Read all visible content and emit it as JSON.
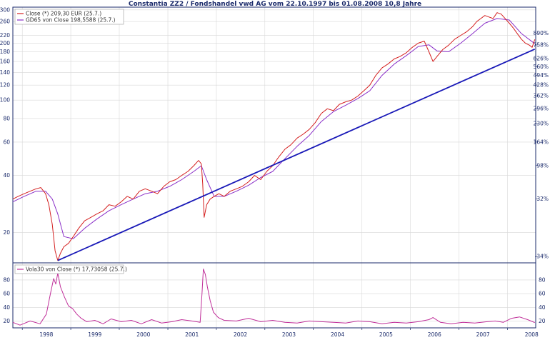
{
  "title": "Constantia ZZ2 / Fondshandel vwd AG vom 22.10.1997 bis 01.08.2008 10,8 Jahre",
  "colors": {
    "close": "#d42020",
    "gd65": "#8a30c8",
    "trend": "#1a1ab8",
    "vola": "#c0309a",
    "axis_text": "#1b2b6b",
    "grid": "#d8d8d8"
  },
  "chart_data": [
    {
      "type": "line",
      "panel": "price",
      "y_scale": "log",
      "ylim": [
        13.8,
        310
      ],
      "x_range": [
        "1997-10-22",
        "2008-08-01"
      ],
      "left_ticks": [
        20,
        40,
        60,
        80,
        100,
        120,
        140,
        160,
        180,
        200,
        220,
        260,
        300
      ],
      "right_ticks": [
        {
          "value": 14.9,
          "label": "-34%"
        },
        {
          "value": 30.0,
          "label": "32%"
        },
        {
          "value": 45.1,
          "label": "98%"
        },
        {
          "value": 60.0,
          "label": "164%"
        },
        {
          "value": 75.2,
          "label": "230%"
        },
        {
          "value": 90.1,
          "label": "296%"
        },
        {
          "value": 105.3,
          "label": "362%"
        },
        {
          "value": 120.2,
          "label": "428%"
        },
        {
          "value": 135.4,
          "label": "494%"
        },
        {
          "value": 150.3,
          "label": "560%"
        },
        {
          "value": 165.5,
          "label": "626%"
        },
        {
          "value": 195.7,
          "label": "758%"
        },
        {
          "value": 225.8,
          "label": "890%"
        }
      ],
      "legend": [
        {
          "label": "Close (*) 209,30 EUR (25.7.)",
          "color": "#d42020"
        },
        {
          "label": "GD65 von Close 198,5588 (25.7.)",
          "color": "#8a30c8"
        }
      ],
      "series": [
        {
          "name": "Close (*) 209,30 EUR (25.7.)",
          "x": [
            "1997-10-22",
            "1997-12-01",
            "1998-01-15",
            "1998-03-01",
            "1998-04-15",
            "1998-05-20",
            "1998-06-25",
            "1998-07-20",
            "1998-08-15",
            "1998-09-05",
            "1998-09-25",
            "1998-10-15",
            "1998-11-10",
            "1998-12-15",
            "1999-01-20",
            "1999-03-01",
            "1999-04-15",
            "1999-06-01",
            "1999-07-15",
            "1999-09-01",
            "1999-10-15",
            "1999-12-01",
            "2000-01-15",
            "2000-03-01",
            "2000-04-15",
            "2000-06-01",
            "2000-07-15",
            "2000-09-01",
            "2000-10-15",
            "2000-12-01",
            "2001-01-15",
            "2001-03-01",
            "2001-04-15",
            "2001-06-01",
            "2001-07-15",
            "2001-08-20",
            "2001-09-10",
            "2001-09-20",
            "2001-10-01",
            "2001-10-20",
            "2001-11-15",
            "2001-12-15",
            "2002-01-20",
            "2002-03-01",
            "2002-04-15",
            "2002-06-01",
            "2002-07-15",
            "2002-09-01",
            "2002-10-15",
            "2002-12-01",
            "2003-01-15",
            "2003-03-01",
            "2003-04-15",
            "2003-06-01",
            "2003-07-15",
            "2003-09-01",
            "2003-10-15",
            "2003-12-01",
            "2004-01-15",
            "2004-03-01",
            "2004-04-15",
            "2004-06-01",
            "2004-07-15",
            "2004-09-01",
            "2004-10-15",
            "2004-12-01",
            "2005-01-15",
            "2005-03-01",
            "2005-04-15",
            "2005-06-01",
            "2005-07-15",
            "2005-09-01",
            "2005-10-15",
            "2005-12-01",
            "2006-01-15",
            "2006-03-01",
            "2006-04-15",
            "2006-05-20",
            "2006-06-20",
            "2006-07-20",
            "2006-09-01",
            "2006-10-15",
            "2006-12-01",
            "2007-01-15",
            "2007-03-01",
            "2007-04-15",
            "2007-05-15",
            "2007-06-15",
            "2007-07-15",
            "2007-08-15",
            "2007-09-15",
            "2007-10-15",
            "2007-11-15",
            "2007-12-15",
            "2008-01-15",
            "2008-02-15",
            "2008-03-15",
            "2008-04-15",
            "2008-05-15",
            "2008-06-15",
            "2008-07-05",
            "2008-07-25"
          ],
          "values": [
            30,
            31,
            32,
            33,
            34,
            34.5,
            32,
            28,
            22,
            16,
            14.2,
            15.5,
            16.8,
            17.5,
            19,
            21,
            23,
            24,
            25,
            26,
            28,
            27.5,
            29,
            31,
            30,
            33,
            34,
            33,
            32,
            35,
            37,
            38,
            40,
            42,
            45,
            48,
            46,
            36,
            24,
            28,
            30,
            31,
            32,
            31,
            33,
            34,
            35,
            37,
            40,
            38,
            42,
            45,
            50,
            55,
            58,
            63,
            66,
            70,
            76,
            85,
            90,
            88,
            95,
            98,
            100,
            105,
            112,
            120,
            135,
            148,
            155,
            165,
            170,
            178,
            190,
            200,
            205,
            180,
            160,
            170,
            185,
            195,
            210,
            220,
            230,
            245,
            260,
            270,
            280,
            275,
            270,
            290,
            285,
            270,
            255,
            240,
            225,
            210,
            200,
            195,
            190,
            209.3
          ]
        },
        {
          "name": "GD65 von Close 198,5588 (25.7.)",
          "x": [
            "1997-10-22",
            "1998-01-15",
            "1998-04-15",
            "1998-06-25",
            "1998-08-15",
            "1998-09-25",
            "1998-11-10",
            "1999-01-20",
            "1999-04-15",
            "1999-07-15",
            "1999-10-15",
            "2000-01-15",
            "2000-04-15",
            "2000-07-15",
            "2000-10-15",
            "2001-01-15",
            "2001-04-15",
            "2001-07-15",
            "2001-09-10",
            "2001-10-20",
            "2001-12-15",
            "2002-03-01",
            "2002-06-01",
            "2002-09-01",
            "2002-12-01",
            "2003-03-01",
            "2003-06-01",
            "2003-09-01",
            "2003-12-01",
            "2004-03-01",
            "2004-06-01",
            "2004-09-01",
            "2004-12-01",
            "2005-03-01",
            "2005-06-01",
            "2005-09-01",
            "2005-12-01",
            "2006-03-01",
            "2006-05-20",
            "2006-07-20",
            "2006-10-15",
            "2007-01-15",
            "2007-04-15",
            "2007-07-15",
            "2007-10-15",
            "2008-01-15",
            "2008-04-15",
            "2008-07-25"
          ],
          "values": [
            29,
            31,
            33,
            33,
            30,
            25,
            19,
            18.5,
            21,
            23.5,
            26,
            28,
            30,
            32,
            33,
            35,
            38,
            42,
            45,
            38,
            31,
            31,
            33,
            35.5,
            39,
            42,
            49,
            57,
            65,
            77,
            87,
            94,
            102,
            112,
            135,
            155,
            172,
            192,
            196,
            182,
            180,
            200,
            225,
            255,
            270,
            265,
            225,
            198.56
          ]
        }
      ],
      "trendline": {
        "name": "trend",
        "points": [
          {
            "x": "1998-09-25",
            "y": 14.2
          },
          {
            "x": "2008-07-25",
            "y": 186
          }
        ]
      }
    },
    {
      "type": "line",
      "panel": "volatility",
      "ylim": [
        10,
        105
      ],
      "x_range": [
        "1997-10-22",
        "2008-08-01"
      ],
      "left_ticks": [
        20,
        40,
        60,
        80
      ],
      "right_ticks": [
        20,
        40,
        60,
        80
      ],
      "x_tick_labels": [
        "1998",
        "1999",
        "2000",
        "2001",
        "2002",
        "2003",
        "2004",
        "2005",
        "2006",
        "2007",
        "2008"
      ],
      "legend": [
        {
          "label": "Vola30 von Close (*) 17,73058 (25.7.)",
          "color": "#c0309a"
        }
      ],
      "series": [
        {
          "name": "Vola30 von Close (*) 17,73058 (25.7.)",
          "x": [
            "1997-10-22",
            "1997-12-15",
            "1998-03-01",
            "1998-05-15",
            "1998-07-01",
            "1998-08-01",
            "1998-08-25",
            "1998-09-10",
            "1998-09-25",
            "1998-10-15",
            "1998-11-15",
            "1998-12-15",
            "1999-01-15",
            "1999-02-15",
            "1999-03-20",
            "1999-05-01",
            "1999-07-01",
            "1999-09-01",
            "1999-11-01",
            "2000-01-15",
            "2000-04-01",
            "2000-06-15",
            "2000-09-01",
            "2000-11-15",
            "2001-02-01",
            "2001-04-15",
            "2001-07-01",
            "2001-09-01",
            "2001-09-15",
            "2001-09-25",
            "2001-10-10",
            "2001-10-25",
            "2001-11-15",
            "2001-12-10",
            "2002-01-15",
            "2002-03-01",
            "2002-06-01",
            "2002-09-01",
            "2002-12-01",
            "2003-03-01",
            "2003-06-01",
            "2003-09-01",
            "2003-12-01",
            "2004-03-01",
            "2004-06-01",
            "2004-09-01",
            "2004-12-01",
            "2005-03-01",
            "2005-06-01",
            "2005-09-01",
            "2005-12-01",
            "2006-03-01",
            "2006-05-20",
            "2006-06-20",
            "2006-08-15",
            "2006-11-01",
            "2007-02-01",
            "2007-05-01",
            "2007-08-01",
            "2007-10-01",
            "2007-12-01",
            "2008-02-01",
            "2008-04-01",
            "2008-06-01",
            "2008-07-25"
          ],
          "values": [
            18,
            14,
            20,
            16,
            30,
            60,
            82,
            74,
            90,
            70,
            55,
            42,
            38,
            30,
            24,
            19,
            21,
            16,
            23,
            19,
            21,
            16,
            22,
            17,
            19,
            22,
            20,
            18,
            60,
            96,
            88,
            70,
            50,
            33,
            25,
            21,
            20,
            24,
            19,
            21,
            18,
            17,
            20,
            19,
            18,
            17,
            20,
            19,
            16,
            18,
            17,
            19,
            22,
            25,
            18,
            16,
            18,
            17,
            19,
            20,
            18,
            24,
            26,
            22,
            17.73
          ]
        }
      ]
    }
  ]
}
